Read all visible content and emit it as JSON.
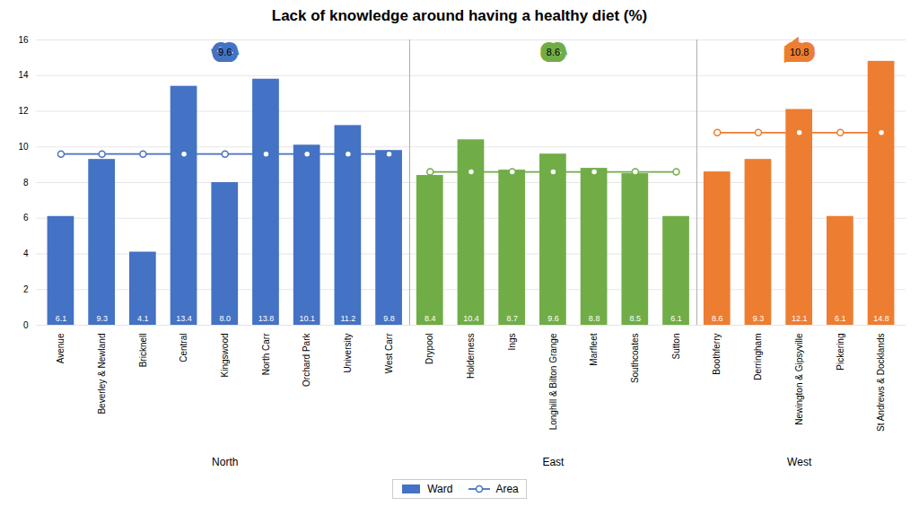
{
  "chart_data": {
    "type": "bar",
    "title": "Lack of knowledge around having a healthy diet (%)",
    "categories": [
      "Avenue",
      "Beverley & Newland",
      "Bricknell",
      "Central",
      "Kingswood",
      "North Carr",
      "Orchard Park",
      "University",
      "West Carr",
      "Drypool",
      "Holderness",
      "Ings",
      "Longhill & Bilton Grange",
      "Marfleet",
      "Southcoates",
      "Sutton",
      "Boothferry",
      "Derringham",
      "Newington & Gipsyville",
      "Pickering",
      "St Andrews & Docklands"
    ],
    "values": [
      6.1,
      9.3,
      4.1,
      13.4,
      8.0,
      13.8,
      10.1,
      11.2,
      9.8,
      8.4,
      10.4,
      8.7,
      9.6,
      8.8,
      8.5,
      6.1,
      8.6,
      9.3,
      12.1,
      6.1,
      14.8
    ],
    "value_labels": [
      "6.1",
      "9.3",
      "4.1",
      "13.4",
      "8.0",
      "13.8",
      "10.1",
      "11.2",
      "9.8",
      "8.4",
      "10.4",
      "8.7",
      "9.6",
      "8.8",
      "8.5",
      "6.1",
      "8.6",
      "9.3",
      "12.1",
      "6.1",
      "14.8"
    ],
    "data_labels": true,
    "bar_areas": [
      "North",
      "North",
      "North",
      "North",
      "North",
      "North",
      "North",
      "North",
      "North",
      "East",
      "East",
      "East",
      "East",
      "East",
      "East",
      "East",
      "West",
      "West",
      "West",
      "West",
      "West"
    ],
    "areas": [
      {
        "name": "North",
        "color": "#4472C4",
        "average": 9.6
      },
      {
        "name": "East",
        "color": "#70AD47",
        "average": 8.6
      },
      {
        "name": "West",
        "color": "#ED7D31",
        "average": 10.8
      }
    ],
    "ylim": [
      0,
      16
    ],
    "yticks": [
      0,
      2,
      4,
      6,
      8,
      10,
      12,
      14,
      16
    ],
    "grid": true,
    "legend": "bottom",
    "legend_entries": [
      {
        "name": "Ward",
        "type": "bar",
        "color": "#4472C4"
      },
      {
        "name": "Area",
        "type": "line",
        "marker": "circle",
        "color": "#4472C4"
      }
    ]
  }
}
